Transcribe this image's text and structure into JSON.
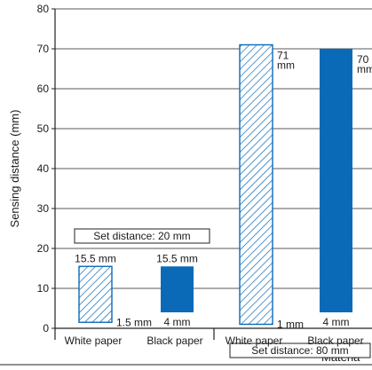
{
  "chart_data": {
    "type": "bar",
    "ylabel": "Sensing distance (mm)",
    "xlabel": "Materia",
    "ylim": [
      0,
      80
    ],
    "yticks": [
      "0",
      "10",
      "20",
      "30",
      "40",
      "50",
      "60",
      "70",
      "80"
    ],
    "grid": true,
    "colors": {
      "solid": "#0a6ab8",
      "hatch": "#0a6ab8",
      "text": "#1a1a1a"
    },
    "groups": [
      {
        "set_label": "Set distance: 20 mm",
        "bars": [
          {
            "category": "White paper",
            "min": 1.5,
            "max": 15.5,
            "style": "hatched",
            "top_label": "15.5 mm",
            "bottom_label": "1.5 mm"
          },
          {
            "category": "Black paper",
            "min": 4,
            "max": 15.5,
            "style": "solid",
            "top_label": "15.5 mm",
            "bottom_label": "4 mm"
          }
        ]
      },
      {
        "set_label": "Set distance: 80 mm",
        "bars": [
          {
            "category": "White paper",
            "min": 1,
            "max": 71,
            "style": "hatched",
            "top_label": "71\nmm",
            "bottom_label": "1 mm"
          },
          {
            "category": "Black paper",
            "min": 4,
            "max": 70,
            "style": "solid",
            "top_label": "70\nmm",
            "bottom_label": "4 mm"
          }
        ]
      }
    ]
  }
}
